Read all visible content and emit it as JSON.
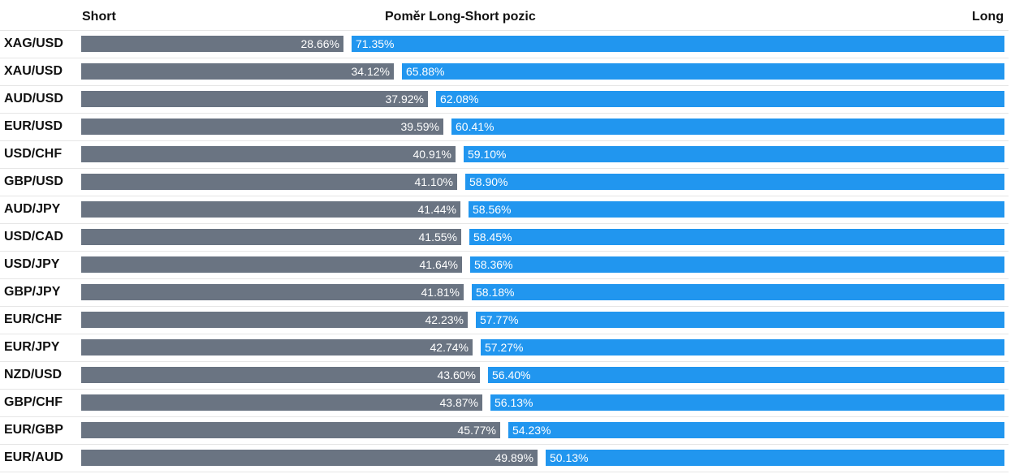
{
  "header": {
    "short": "Short",
    "title": "Poměr Long-Short pozic",
    "long": "Long"
  },
  "colors": {
    "short_bar": "#6a7482",
    "long_bar": "#2196ef",
    "row_line": "#e6e6e6"
  },
  "chart_data": {
    "type": "bar",
    "title": "Poměr Long-Short pozic",
    "categories": [
      "XAG/USD",
      "XAU/USD",
      "AUD/USD",
      "EUR/USD",
      "USD/CHF",
      "GBP/USD",
      "AUD/JPY",
      "USD/CAD",
      "USD/JPY",
      "GBP/JPY",
      "EUR/CHF",
      "EUR/JPY",
      "NZD/USD",
      "GBP/CHF",
      "EUR/GBP",
      "EUR/AUD"
    ],
    "series": [
      {
        "name": "Short",
        "values": [
          28.66,
          34.12,
          37.92,
          39.59,
          40.91,
          41.1,
          41.44,
          41.55,
          41.64,
          41.81,
          42.23,
          42.74,
          43.6,
          43.87,
          45.77,
          49.89
        ],
        "labels": [
          "28.66%",
          "34.12%",
          "37.92%",
          "39.59%",
          "40.91%",
          "41.10%",
          "41.44%",
          "41.55%",
          "41.64%",
          "41.81%",
          "42.23%",
          "42.74%",
          "43.60%",
          "43.87%",
          "45.77%",
          "49.89%"
        ]
      },
      {
        "name": "Long",
        "values": [
          71.35,
          65.88,
          62.08,
          60.41,
          59.1,
          58.9,
          58.56,
          58.45,
          58.36,
          58.18,
          57.77,
          57.27,
          56.4,
          56.13,
          54.23,
          50.13
        ],
        "labels": [
          "71.35%",
          "65.88%",
          "62.08%",
          "60.41%",
          "59.10%",
          "58.90%",
          "58.56%",
          "58.45%",
          "58.36%",
          "58.18%",
          "57.77%",
          "57.27%",
          "56.40%",
          "56.13%",
          "54.23%",
          "50.13%"
        ]
      }
    ],
    "stacked": true,
    "orientation": "horizontal"
  }
}
